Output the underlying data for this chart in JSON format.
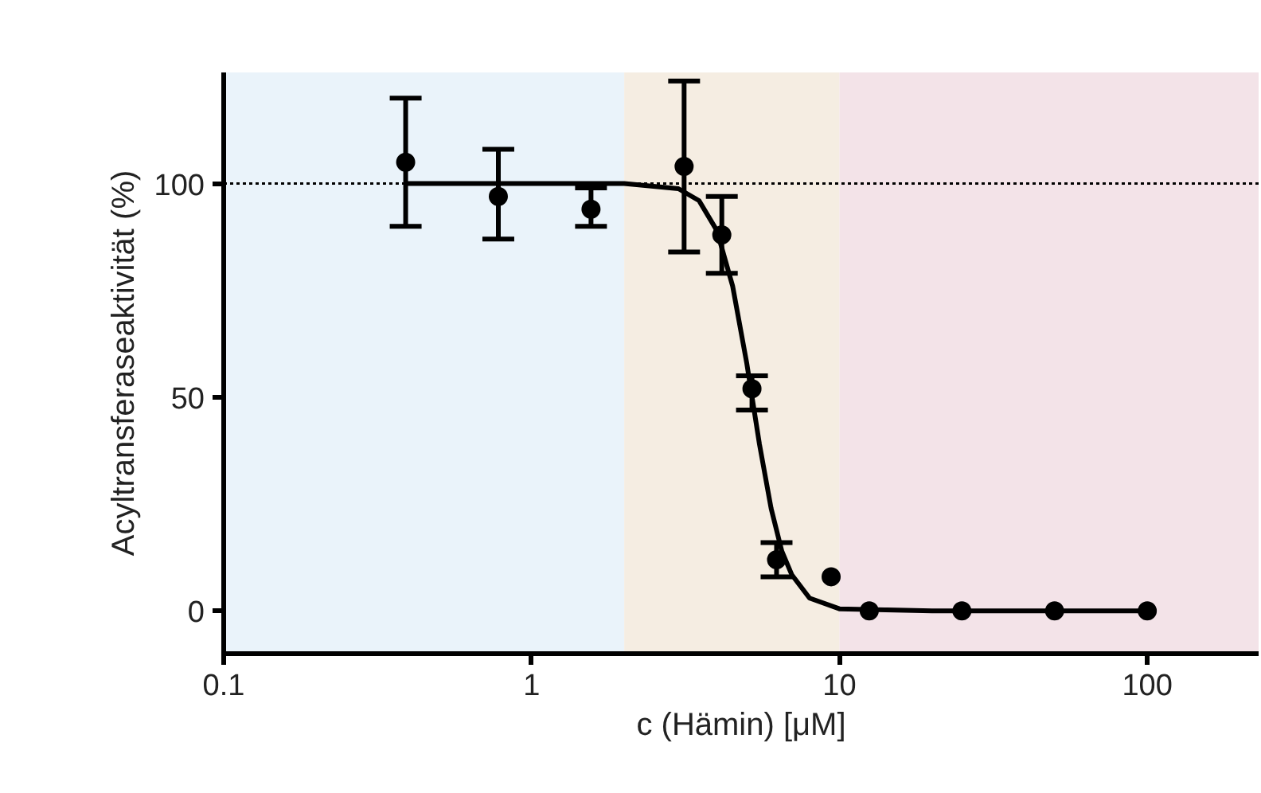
{
  "chart_data": {
    "type": "scatter",
    "xlabel": "c (Hämin) [μM]",
    "ylabel": "Acyltransferaseaktivität (%)",
    "log": "x",
    "xlim": [
      0.1,
      230
    ],
    "xticks": [
      0.1,
      1,
      10,
      100
    ],
    "ylim": [
      -10,
      126
    ],
    "yticks": [
      0,
      50,
      100
    ],
    "grid": false,
    "marker": "circle",
    "series": [
      {
        "color": "#000000",
        "x": [
          0.39,
          0.78,
          1.56,
          3.13,
          4.15,
          5.2,
          6.25,
          9.4,
          12.5,
          25,
          50,
          100
        ],
        "values": [
          105,
          97,
          94,
          104,
          88,
          52,
          12,
          8,
          0,
          0,
          0,
          0
        ],
        "errors": [
          [
            90,
            120
          ],
          [
            87,
            108
          ],
          [
            90,
            99
          ],
          [
            84,
            124
          ],
          [
            79,
            97
          ],
          [
            47,
            55
          ],
          [
            8,
            16
          ],
          null,
          null,
          null,
          null,
          null
        ]
      },
      {
        "type": "line",
        "color": "#000000",
        "marker": "none",
        "line_style": "solid",
        "x": [
          0.39,
          1,
          2,
          3,
          3.5,
          4,
          4.5,
          5,
          5.5,
          6,
          6.5,
          7,
          8,
          10,
          20,
          100
        ],
        "values": [
          100,
          100,
          100,
          98.8,
          96,
          89,
          76,
          58,
          39,
          24,
          14,
          8.5,
          3,
          0.5,
          0,
          0
        ]
      }
    ],
    "ref_lines": [
      {
        "axis": "y",
        "value": 100,
        "color": "#000000",
        "line_style": "dotted"
      }
    ],
    "bands": [
      {
        "axis": "x",
        "from": 0.1,
        "to": 2,
        "color": "#eaf3fa"
      },
      {
        "axis": "x",
        "from": 2,
        "to": 10,
        "color": "#f5ede2"
      },
      {
        "axis": "x",
        "from": 10,
        "to": 230,
        "color": "#f3e3e8"
      }
    ]
  }
}
